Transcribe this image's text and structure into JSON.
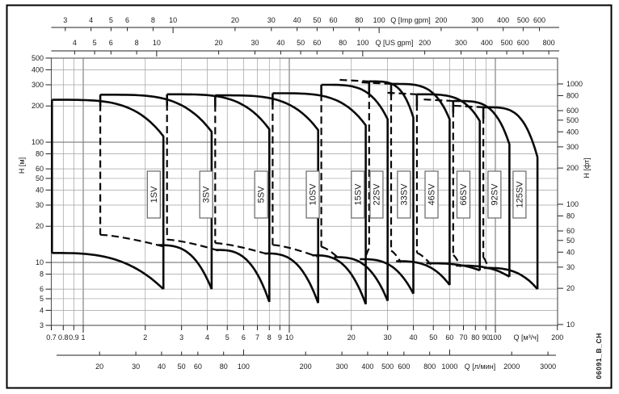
{
  "figure": {
    "code_label": "06091_B_CH",
    "background": "#ffffff",
    "curve_color": "#0a0a0a",
    "grid_color": "#a0a0a0",
    "grid_decade_color": "#787878",
    "frame_color": "#555555",
    "text_color": "#1a1a1a"
  },
  "axes": {
    "top_imp_gpm": {
      "title": "Q [Imp gpm]",
      "units_per_m3h": 3.666,
      "ticks": [
        3,
        4,
        5,
        6,
        8,
        10,
        20,
        30,
        40,
        50,
        60,
        80,
        100,
        200,
        300,
        400,
        500,
        600
      ]
    },
    "top_us_gpm": {
      "title": "Q [US gpm]",
      "units_per_m3h": 4.403,
      "ticks": [
        4,
        5,
        6,
        8,
        10,
        20,
        30,
        40,
        50,
        60,
        80,
        100,
        200,
        300,
        400,
        500,
        600,
        800
      ]
    },
    "left_h_m": {
      "title": "H [м]",
      "ticks": [
        500,
        400,
        300,
        200,
        100,
        80,
        60,
        50,
        40,
        30,
        20,
        10,
        8,
        6,
        5,
        4,
        3
      ]
    },
    "right_h_ft": {
      "title": "H [фт]",
      "m_per_unit": 0.3048,
      "ticks": [
        1000,
        800,
        600,
        500,
        400,
        300,
        200,
        100,
        80,
        60,
        50,
        40,
        30,
        20,
        10
      ]
    },
    "bottom_m3h": {
      "title": "Q [м³/ч]",
      "ticks": [
        0.7,
        0.8,
        0.9,
        1,
        2,
        3,
        4,
        5,
        6,
        7,
        8,
        9,
        10,
        20,
        30,
        40,
        50,
        60,
        70,
        80,
        90,
        100,
        200
      ]
    },
    "bottom_l_min": {
      "title": "Q [л/мин]",
      "units_per_m3h": 16.667,
      "ticks": [
        20,
        30,
        40,
        50,
        60,
        80,
        100,
        200,
        300,
        400,
        500,
        600,
        800,
        1000,
        2000,
        3000
      ]
    }
  },
  "chart_data": {
    "type": "line",
    "description": "Vertical multistage pump family coverage envelopes, head H vs flow Q on log-log axes",
    "x_unit_primary": "м³/ч",
    "y_unit_primary": "м",
    "x_range": [
      0.7,
      200
    ],
    "y_range": [
      3,
      500
    ],
    "grid": true,
    "pumps": [
      {
        "name": "1SV",
        "q_min": 0.705,
        "q_max": 2.45,
        "h_top_at_qmin": 225,
        "h_top_at_qmax": 112,
        "h_bottom_at_qmax": 6.0,
        "h_min_flow_level": null,
        "label_q": 2.2
      },
      {
        "name": "3SV",
        "q_min": 1.21,
        "q_max": 4.2,
        "h_top_at_qmin": 248,
        "h_top_at_qmax": 122,
        "h_bottom_at_qmax": 6.0,
        "h_min_flow_level": 17,
        "label_q": 3.95
      },
      {
        "name": "5SV",
        "q_min": 2.55,
        "q_max": 8.0,
        "h_top_at_qmin": 250,
        "h_top_at_qmax": 128,
        "h_bottom_at_qmax": 4.7,
        "h_min_flow_level": 15.5,
        "label_q": 7.3
      },
      {
        "name": "10SV",
        "q_min": 4.37,
        "q_max": 13.8,
        "h_top_at_qmin": 245,
        "h_top_at_qmax": 126,
        "h_bottom_at_qmax": 4.6,
        "h_min_flow_level": 14.5,
        "label_q": 13
      },
      {
        "name": "15SV",
        "q_min": 8.3,
        "q_max": 23.5,
        "h_top_at_qmin": 255,
        "h_top_at_qmax": 138,
        "h_bottom_at_qmax": 4.5,
        "h_min_flow_level": 14,
        "label_q": 21.5
      },
      {
        "name": "22SV",
        "q_min": 14.3,
        "q_max": 30,
        "h_top_at_qmin": 300,
        "h_top_at_qmax": 155,
        "h_bottom_at_qmax": 4.8,
        "h_min_flow_level": 13.5,
        "label_q": 26.5
      },
      {
        "name": "33SV",
        "q_min": 24.4,
        "q_max": 40,
        "h_top_at_qmin": 320,
        "h_top_at_qmax": 160,
        "h_bottom_at_qmax": 5.5,
        "h_min_flow_level": 13,
        "label_q": 36
      },
      {
        "name": "46SV",
        "q_min": 31.2,
        "q_max": 60,
        "h_top_at_qmin": 305,
        "h_top_at_qmax": 155,
        "h_bottom_at_qmax": 6.5,
        "h_min_flow_level": 12.5,
        "label_q": 49
      },
      {
        "name": "66SV",
        "q_min": 41.6,
        "q_max": 84,
        "h_top_at_qmin": 250,
        "h_top_at_qmax": 150,
        "h_bottom_at_qmax": 8.6,
        "h_min_flow_level": 12,
        "label_q": 70
      },
      {
        "name": "92SV",
        "q_min": 62.4,
        "q_max": 117,
        "h_top_at_qmin": 220,
        "h_top_at_qmax": 96,
        "h_bottom_at_qmax": 7.6,
        "h_min_flow_level": 11.5,
        "label_q": 99
      },
      {
        "name": "125SV",
        "q_min": 87.4,
        "q_max": 160,
        "h_top_at_qmin": 195,
        "h_top_at_qmax": 75,
        "h_bottom_at_qmax": 6.0,
        "h_min_flow_level": 11,
        "label_q": 131
      }
    ]
  }
}
